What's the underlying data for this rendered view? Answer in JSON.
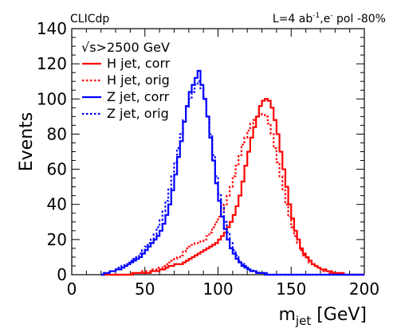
{
  "chart_data": {
    "type": "line",
    "title": "",
    "header_left": "CLICdp",
    "header_right_prefix": "L=4 ab",
    "header_right_exp1": "-1",
    "header_right_mid": ",e",
    "header_right_exp2": "-",
    "header_right_suffix": " pol -80%",
    "ylabel": "Events",
    "xlabel_main": "m",
    "xlabel_sub": "jet",
    "xlabel_unit": " [GeV]",
    "xlim": [
      0,
      200
    ],
    "ylim": [
      0,
      140
    ],
    "x_ticks": [
      0,
      50,
      100,
      150,
      200
    ],
    "y_ticks": [
      0,
      20,
      40,
      60,
      80,
      100,
      120,
      140
    ],
    "grid": false,
    "legend_position": "top-left",
    "legend_header": "√s>2500 GeV",
    "bin_width": 2,
    "x_start": 20,
    "series": [
      {
        "name": "H jet, corr",
        "color": "#ff0000",
        "style": "solid",
        "values": [
          0,
          0,
          0,
          0,
          0,
          0,
          0,
          0,
          0,
          0,
          0,
          1,
          1,
          1,
          1,
          1,
          1,
          2,
          2,
          2,
          3,
          3,
          4,
          5,
          5,
          6,
          6,
          6,
          7,
          8,
          9,
          10,
          11,
          12,
          13,
          14,
          15,
          16,
          17,
          18,
          20,
          22,
          24,
          27,
          30,
          34,
          39,
          45,
          53,
          62,
          70,
          78,
          84,
          90,
          96,
          99,
          100,
          99,
          95,
          88,
          80,
          70,
          60,
          50,
          40,
          32,
          25,
          20,
          15,
          12,
          10,
          8,
          6,
          5,
          4,
          3,
          3,
          2,
          2,
          1,
          1,
          1,
          1,
          0,
          0,
          0,
          0,
          0,
          0,
          0
        ]
      },
      {
        "name": "H jet, orig",
        "color": "#ff0000",
        "style": "dotted",
        "values": [
          0,
          0,
          0,
          0,
          0,
          0,
          0,
          0,
          0,
          0,
          1,
          1,
          1,
          1,
          2,
          2,
          2,
          3,
          3,
          4,
          4,
          5,
          6,
          7,
          8,
          9,
          10,
          11,
          13,
          15,
          16,
          17,
          18,
          18,
          19,
          20,
          22,
          24,
          27,
          30,
          33,
          37,
          40,
          45,
          50,
          56,
          62,
          68,
          74,
          78,
          82,
          86,
          88,
          90,
          92,
          91,
          90,
          86,
          80,
          72,
          64,
          56,
          48,
          40,
          33,
          27,
          22,
          18,
          14,
          11,
          9,
          7,
          6,
          5,
          4,
          3,
          2,
          2,
          1,
          1,
          1,
          1,
          0,
          0,
          0,
          0,
          0,
          0,
          0,
          0
        ]
      },
      {
        "name": "Z jet, corr",
        "color": "#0000ff",
        "style": "solid",
        "values": [
          0,
          1,
          1,
          2,
          2,
          3,
          3,
          4,
          5,
          6,
          7,
          8,
          9,
          10,
          12,
          14,
          16,
          18,
          20,
          22,
          25,
          29,
          34,
          40,
          48,
          57,
          67,
          76,
          87,
          96,
          104,
          108,
          112,
          116,
          108,
          100,
          90,
          78,
          65,
          52,
          42,
          33,
          26,
          20,
          15,
          12,
          9,
          7,
          5,
          4,
          3,
          2,
          2,
          1,
          1,
          1,
          0,
          0,
          0,
          0,
          0,
          0,
          0,
          0,
          0,
          0,
          0,
          0,
          0,
          0,
          0,
          0,
          0,
          0,
          0,
          0,
          0,
          0,
          0,
          0,
          0,
          0,
          0,
          0,
          0,
          0,
          0,
          0,
          0,
          0
        ]
      },
      {
        "name": "Z jet, orig",
        "color": "#0000ff",
        "style": "dotted",
        "values": [
          0,
          1,
          1,
          2,
          2,
          3,
          4,
          5,
          6,
          7,
          8,
          9,
          10,
          12,
          14,
          16,
          18,
          20,
          23,
          27,
          31,
          36,
          42,
          49,
          56,
          64,
          72,
          80,
          88,
          95,
          100,
          104,
          108,
          110,
          106,
          100,
          90,
          80,
          68,
          56,
          46,
          38,
          30,
          24,
          18,
          14,
          11,
          8,
          6,
          5,
          4,
          3,
          2,
          2,
          1,
          1,
          1,
          0,
          0,
          0,
          0,
          0,
          0,
          0,
          0,
          0,
          0,
          0,
          0,
          0,
          0,
          0,
          0,
          0,
          0,
          0,
          0,
          0,
          0,
          0,
          0,
          0,
          0,
          0,
          0,
          0,
          0,
          0,
          0,
          0
        ]
      }
    ]
  }
}
